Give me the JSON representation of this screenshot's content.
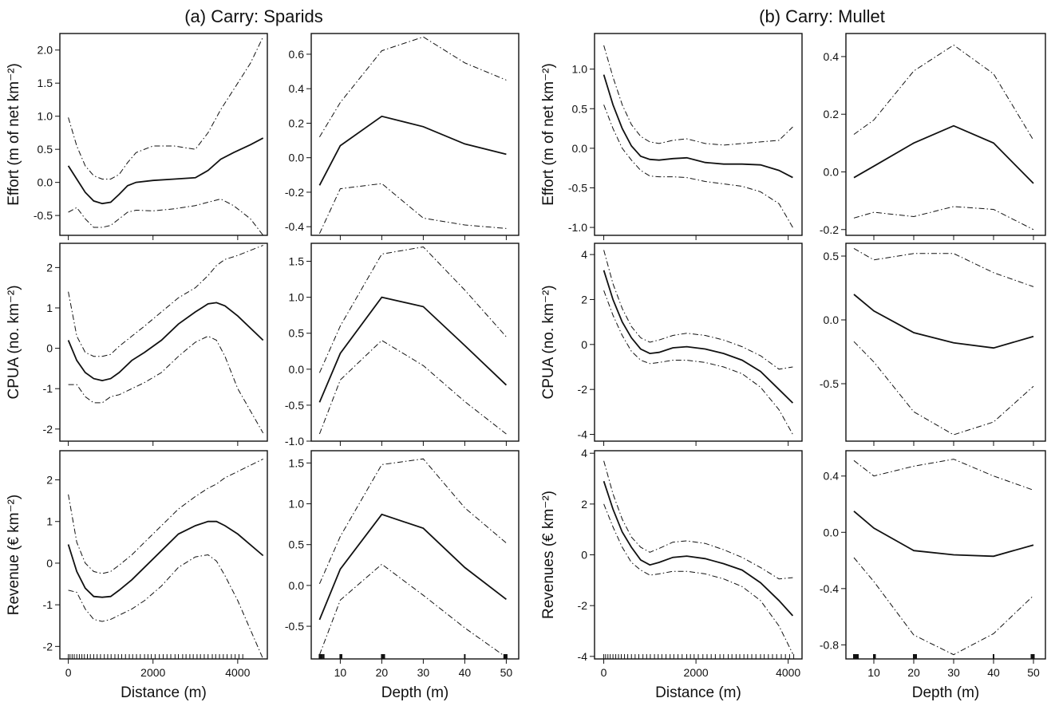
{
  "groups": [
    {
      "title": "(a) Carry: Sparids"
    },
    {
      "title": "(b) Carry: Mullet"
    }
  ],
  "chart_data": [
    {
      "type": "line",
      "group": 0,
      "row": 0,
      "ylabel": "Effort (m of net km⁻²)",
      "xlabel": "",
      "xlim": [
        -200,
        4700
      ],
      "ylim": [
        -0.8,
        2.25
      ],
      "xticks": [
        0,
        2000,
        4000
      ],
      "xtick_labels": [
        "",
        "",
        ""
      ],
      "yticks": [
        -0.5,
        0,
        0.5,
        1,
        1.5,
        2
      ],
      "ytick_labels": [
        "-0.5",
        "0.0",
        "0.5",
        "1.0",
        "1.5",
        "2.0"
      ],
      "x": [
        0,
        200,
        400,
        600,
        800,
        1000,
        1200,
        1400,
        1600,
        2000,
        2500,
        3000,
        3300,
        3600,
        3900,
        4300,
        4600
      ],
      "series": [
        {
          "style": "solid",
          "values": [
            0.25,
            0.05,
            -0.15,
            -0.28,
            -0.32,
            -0.3,
            -0.18,
            -0.05,
            0.0,
            0.03,
            0.05,
            0.07,
            0.18,
            0.35,
            0.45,
            0.57,
            0.67
          ]
        },
        {
          "style": "dashdot",
          "values": [
            0.98,
            0.55,
            0.25,
            0.1,
            0.05,
            0.05,
            0.12,
            0.3,
            0.45,
            0.55,
            0.55,
            0.5,
            0.75,
            1.1,
            1.4,
            1.8,
            2.2
          ]
        },
        {
          "style": "dashdot",
          "values": [
            -0.45,
            -0.38,
            -0.55,
            -0.68,
            -0.68,
            -0.65,
            -0.55,
            -0.45,
            -0.42,
            -0.43,
            -0.4,
            -0.35,
            -0.3,
            -0.25,
            -0.35,
            -0.55,
            -0.8
          ]
        }
      ]
    },
    {
      "type": "line",
      "group": 0,
      "row": 0,
      "ylabel": "",
      "xlabel": "",
      "xlim": [
        3,
        53
      ],
      "ylim": [
        -0.45,
        0.72
      ],
      "xticks": [
        10,
        20,
        30,
        40,
        50
      ],
      "xtick_labels": [
        "",
        "",
        "",
        "",
        ""
      ],
      "yticks": [
        -0.4,
        -0.2,
        0,
        0.2,
        0.4,
        0.6
      ],
      "ytick_labels": [
        "-0.4",
        "-0.2",
        "0.0",
        "0.2",
        "0.4",
        "0.6"
      ],
      "x": [
        5,
        10,
        20,
        30,
        40,
        50
      ],
      "series": [
        {
          "style": "solid",
          "values": [
            -0.16,
            0.07,
            0.24,
            0.18,
            0.08,
            0.02
          ]
        },
        {
          "style": "dashdot",
          "values": [
            0.12,
            0.32,
            0.62,
            0.7,
            0.55,
            0.45
          ]
        },
        {
          "style": "dashdot",
          "values": [
            -0.44,
            -0.18,
            -0.15,
            -0.35,
            -0.39,
            -0.41
          ]
        }
      ]
    },
    {
      "type": "line",
      "group": 1,
      "row": 0,
      "ylabel": "Effort (m of net km⁻²)",
      "xlabel": "",
      "xlim": [
        -200,
        4300
      ],
      "ylim": [
        -1.1,
        1.45
      ],
      "xticks": [
        0,
        2000,
        4000
      ],
      "xtick_labels": [
        "",
        "",
        ""
      ],
      "yticks": [
        -1,
        -0.5,
        0,
        0.5,
        1
      ],
      "ytick_labels": [
        "-1.0",
        "-0.5",
        "0.0",
        "0.5",
        "1.0"
      ],
      "x": [
        0,
        200,
        400,
        600,
        800,
        1000,
        1200,
        1500,
        1800,
        2200,
        2600,
        3000,
        3400,
        3800,
        4100
      ],
      "series": [
        {
          "style": "solid",
          "values": [
            0.93,
            0.55,
            0.25,
            0.03,
            -0.1,
            -0.14,
            -0.15,
            -0.13,
            -0.12,
            -0.18,
            -0.2,
            -0.2,
            -0.21,
            -0.28,
            -0.37
          ]
        },
        {
          "style": "dashdot",
          "values": [
            1.3,
            0.9,
            0.55,
            0.3,
            0.15,
            0.08,
            0.06,
            0.1,
            0.12,
            0.06,
            0.04,
            0.06,
            0.08,
            0.1,
            0.27
          ]
        },
        {
          "style": "dashdot",
          "values": [
            0.55,
            0.25,
            0.0,
            -0.15,
            -0.28,
            -0.35,
            -0.36,
            -0.36,
            -0.37,
            -0.42,
            -0.45,
            -0.48,
            -0.55,
            -0.7,
            -1.0
          ]
        }
      ]
    },
    {
      "type": "line",
      "group": 1,
      "row": 0,
      "ylabel": "",
      "xlabel": "",
      "xlim": [
        3,
        53
      ],
      "ylim": [
        -0.22,
        0.48
      ],
      "xticks": [
        10,
        20,
        30,
        40,
        50
      ],
      "xtick_labels": [
        "",
        "",
        "",
        "",
        ""
      ],
      "yticks": [
        -0.2,
        0,
        0.2,
        0.4
      ],
      "ytick_labels": [
        "-0.2",
        "0.0",
        "0.2",
        "0.4"
      ],
      "x": [
        5,
        10,
        20,
        30,
        40,
        50
      ],
      "series": [
        {
          "style": "solid",
          "values": [
            -0.02,
            0.02,
            0.1,
            0.16,
            0.1,
            -0.04
          ]
        },
        {
          "style": "dashdot",
          "values": [
            0.13,
            0.18,
            0.35,
            0.44,
            0.34,
            0.11
          ]
        },
        {
          "style": "dashdot",
          "values": [
            -0.16,
            -0.14,
            -0.155,
            -0.12,
            -0.13,
            -0.2
          ]
        }
      ]
    },
    {
      "type": "line",
      "group": 0,
      "row": 1,
      "ylabel": "CPUA (no. km⁻²)",
      "xlabel": "",
      "xlim": [
        -200,
        4700
      ],
      "ylim": [
        -2.3,
        2.6
      ],
      "xticks": [
        0,
        2000,
        4000
      ],
      "xtick_labels": [
        "",
        "",
        ""
      ],
      "yticks": [
        -2,
        -1,
        0,
        1,
        2
      ],
      "ytick_labels": [
        "-2",
        "-1",
        "0",
        "1",
        "2"
      ],
      "x": [
        0,
        200,
        400,
        600,
        800,
        1000,
        1200,
        1500,
        1800,
        2200,
        2600,
        3000,
        3300,
        3500,
        3700,
        4000,
        4600
      ],
      "series": [
        {
          "style": "solid",
          "values": [
            0.2,
            -0.3,
            -0.6,
            -0.75,
            -0.8,
            -0.75,
            -0.6,
            -0.3,
            -0.1,
            0.2,
            0.6,
            0.9,
            1.1,
            1.13,
            1.05,
            0.8,
            0.2
          ]
        },
        {
          "style": "dashdot",
          "values": [
            1.4,
            0.3,
            -0.1,
            -0.2,
            -0.2,
            -0.15,
            0.05,
            0.3,
            0.55,
            0.9,
            1.25,
            1.5,
            1.8,
            2.05,
            2.2,
            2.3,
            2.55
          ]
        },
        {
          "style": "dashdot",
          "values": [
            -0.9,
            -0.9,
            -1.2,
            -1.35,
            -1.35,
            -1.2,
            -1.15,
            -1.0,
            -0.85,
            -0.6,
            -0.2,
            0.15,
            0.3,
            0.2,
            -0.2,
            -1.0,
            -2.1
          ]
        }
      ]
    },
    {
      "type": "line",
      "group": 0,
      "row": 1,
      "ylabel": "",
      "xlabel": "",
      "xlim": [
        3,
        53
      ],
      "ylim": [
        -1.0,
        1.75
      ],
      "xticks": [
        10,
        20,
        30,
        40,
        50
      ],
      "xtick_labels": [
        "",
        "",
        "",
        "",
        ""
      ],
      "yticks": [
        -1,
        -0.5,
        0,
        0.5,
        1,
        1.5
      ],
      "ytick_labels": [
        "-1.0",
        "-0.5",
        "0.0",
        "0.5",
        "1.0",
        "1.5"
      ],
      "x": [
        5,
        10,
        20,
        30,
        40,
        50
      ],
      "series": [
        {
          "style": "solid",
          "values": [
            -0.46,
            0.22,
            1.0,
            0.87,
            0.33,
            -0.22
          ]
        },
        {
          "style": "dashdot",
          "values": [
            -0.05,
            0.6,
            1.6,
            1.7,
            1.1,
            0.45
          ]
        },
        {
          "style": "dashdot",
          "values": [
            -0.9,
            -0.15,
            0.4,
            0.05,
            -0.45,
            -0.9
          ]
        }
      ]
    },
    {
      "type": "line",
      "group": 1,
      "row": 1,
      "ylabel": "CPUA (no. km⁻²)",
      "xlabel": "",
      "xlim": [
        -200,
        4300
      ],
      "ylim": [
        -4.3,
        4.5
      ],
      "xticks": [
        0,
        2000,
        4000
      ],
      "xtick_labels": [
        "",
        "",
        ""
      ],
      "yticks": [
        -4,
        -2,
        0,
        2,
        4
      ],
      "ytick_labels": [
        "-4",
        "-2",
        "0",
        "2",
        "4"
      ],
      "x": [
        0,
        200,
        400,
        600,
        800,
        1000,
        1200,
        1500,
        1800,
        2200,
        2600,
        3000,
        3400,
        3800,
        4100
      ],
      "series": [
        {
          "style": "solid",
          "values": [
            3.3,
            2.0,
            1.0,
            0.3,
            -0.2,
            -0.4,
            -0.35,
            -0.15,
            -0.1,
            -0.2,
            -0.4,
            -0.7,
            -1.2,
            -2.0,
            -2.6
          ]
        },
        {
          "style": "dashdot",
          "values": [
            4.2,
            2.7,
            1.6,
            0.8,
            0.3,
            0.1,
            0.2,
            0.4,
            0.5,
            0.4,
            0.2,
            -0.1,
            -0.5,
            -1.1,
            -1.0
          ]
        },
        {
          "style": "dashdot",
          "values": [
            2.4,
            1.3,
            0.4,
            -0.3,
            -0.7,
            -0.85,
            -0.8,
            -0.7,
            -0.7,
            -0.8,
            -1.0,
            -1.3,
            -1.9,
            -2.9,
            -4.0
          ]
        }
      ]
    },
    {
      "type": "line",
      "group": 1,
      "row": 1,
      "ylabel": "",
      "xlabel": "",
      "xlim": [
        3,
        53
      ],
      "ylim": [
        -0.95,
        0.6
      ],
      "xticks": [
        10,
        20,
        30,
        40,
        50
      ],
      "xtick_labels": [
        "",
        "",
        "",
        "",
        ""
      ],
      "yticks": [
        -0.5,
        0,
        0.5
      ],
      "ytick_labels": [
        "-0.5",
        "0.0",
        "0.5"
      ],
      "x": [
        5,
        10,
        20,
        30,
        40,
        50
      ],
      "series": [
        {
          "style": "solid",
          "values": [
            0.2,
            0.07,
            -0.1,
            -0.18,
            -0.22,
            -0.13
          ]
        },
        {
          "style": "dashdot",
          "values": [
            0.56,
            0.47,
            0.52,
            0.52,
            0.37,
            0.26
          ]
        },
        {
          "style": "dashdot",
          "values": [
            -0.17,
            -0.33,
            -0.72,
            -0.9,
            -0.8,
            -0.52
          ]
        }
      ]
    },
    {
      "type": "line",
      "group": 0,
      "row": 2,
      "ylabel": "Revenue (€ km⁻²)",
      "xlabel": "Distance (m)",
      "xlim": [
        -200,
        4700
      ],
      "ylim": [
        -2.3,
        2.7
      ],
      "xticks": [
        0,
        2000,
        4000
      ],
      "xtick_labels": [
        "0",
        "2000",
        "4000"
      ],
      "yticks": [
        -2,
        -1,
        0,
        1,
        2
      ],
      "ytick_labels": [
        "-2",
        "-1",
        "0",
        "1",
        "2"
      ],
      "x": [
        0,
        200,
        400,
        600,
        800,
        1000,
        1200,
        1500,
        1800,
        2200,
        2600,
        3000,
        3300,
        3500,
        3700,
        4000,
        4600
      ],
      "series": [
        {
          "style": "solid",
          "values": [
            0.45,
            -0.2,
            -0.6,
            -0.8,
            -0.82,
            -0.8,
            -0.65,
            -0.4,
            -0.1,
            0.3,
            0.7,
            0.9,
            1.0,
            1.0,
            0.9,
            0.7,
            0.18
          ]
        },
        {
          "style": "dashdot",
          "values": [
            1.65,
            0.5,
            0.0,
            -0.2,
            -0.25,
            -0.2,
            -0.05,
            0.2,
            0.5,
            0.9,
            1.3,
            1.6,
            1.8,
            1.9,
            2.05,
            2.2,
            2.5
          ]
        },
        {
          "style": "dashdot",
          "values": [
            -0.65,
            -0.7,
            -1.1,
            -1.35,
            -1.4,
            -1.35,
            -1.25,
            -1.1,
            -0.9,
            -0.55,
            -0.1,
            0.15,
            0.2,
            0.05,
            -0.3,
            -0.9,
            -2.3
          ]
        }
      ]
    },
    {
      "type": "line",
      "group": 0,
      "row": 2,
      "ylabel": "",
      "xlabel": "Depth (m)",
      "xlim": [
        3,
        53
      ],
      "ylim": [
        -0.9,
        1.65
      ],
      "xticks": [
        10,
        20,
        30,
        40,
        50
      ],
      "xtick_labels": [
        "10",
        "20",
        "30",
        "40",
        "50"
      ],
      "yticks": [
        -0.5,
        0,
        0.5,
        1,
        1.5
      ],
      "ytick_labels": [
        "-0.5",
        "0.0",
        "0.5",
        "1.0",
        "1.5"
      ],
      "x": [
        5,
        10,
        20,
        30,
        40,
        50
      ],
      "series": [
        {
          "style": "solid",
          "values": [
            -0.42,
            0.2,
            0.87,
            0.7,
            0.22,
            -0.17
          ]
        },
        {
          "style": "dashdot",
          "values": [
            0.02,
            0.6,
            1.48,
            1.55,
            0.95,
            0.52
          ]
        },
        {
          "style": "dashdot",
          "values": [
            -0.85,
            -0.18,
            0.26,
            -0.12,
            -0.52,
            -0.88
          ]
        }
      ]
    },
    {
      "type": "line",
      "group": 1,
      "row": 2,
      "ylabel": "Revenues (€ km⁻²)",
      "xlabel": "Distance (m)",
      "xlim": [
        -200,
        4300
      ],
      "ylim": [
        -4.1,
        4.1
      ],
      "xticks": [
        0,
        2000,
        4000
      ],
      "xtick_labels": [
        "0",
        "2000",
        "4000"
      ],
      "yticks": [
        -4,
        -2,
        0,
        2,
        4
      ],
      "ytick_labels": [
        "-4",
        "-2",
        "0",
        "2",
        "4"
      ],
      "x": [
        0,
        200,
        400,
        600,
        800,
        1000,
        1200,
        1500,
        1800,
        2200,
        2600,
        3000,
        3400,
        3800,
        4100
      ],
      "series": [
        {
          "style": "solid",
          "values": [
            2.9,
            1.8,
            0.9,
            0.3,
            -0.2,
            -0.4,
            -0.3,
            -0.1,
            -0.05,
            -0.15,
            -0.35,
            -0.6,
            -1.1,
            -1.8,
            -2.4
          ]
        },
        {
          "style": "dashdot",
          "values": [
            3.7,
            2.4,
            1.4,
            0.7,
            0.3,
            0.1,
            0.25,
            0.5,
            0.55,
            0.45,
            0.2,
            -0.1,
            -0.5,
            -0.95,
            -0.9
          ]
        },
        {
          "style": "dashdot",
          "values": [
            2.0,
            1.1,
            0.3,
            -0.3,
            -0.6,
            -0.8,
            -0.75,
            -0.65,
            -0.65,
            -0.75,
            -0.95,
            -1.25,
            -1.8,
            -2.8,
            -3.9
          ]
        }
      ]
    },
    {
      "type": "line",
      "group": 1,
      "row": 2,
      "ylabel": "",
      "xlabel": "Depth (m)",
      "xlim": [
        3,
        53
      ],
      "ylim": [
        -0.9,
        0.58
      ],
      "xticks": [
        10,
        20,
        30,
        40,
        50
      ],
      "xtick_labels": [
        "10",
        "20",
        "30",
        "40",
        "50"
      ],
      "yticks": [
        -0.8,
        -0.4,
        0,
        0.4
      ],
      "ytick_labels": [
        "-0.8",
        "-0.4",
        "0.0",
        "0.4"
      ],
      "x": [
        5,
        10,
        20,
        30,
        40,
        50
      ],
      "series": [
        {
          "style": "solid",
          "values": [
            0.15,
            0.03,
            -0.13,
            -0.16,
            -0.17,
            -0.09
          ]
        },
        {
          "style": "dashdot",
          "values": [
            0.51,
            0.4,
            0.47,
            0.52,
            0.4,
            0.3
          ]
        },
        {
          "style": "dashdot",
          "values": [
            -0.18,
            -0.35,
            -0.73,
            -0.87,
            -0.72,
            -0.45
          ]
        }
      ]
    }
  ]
}
